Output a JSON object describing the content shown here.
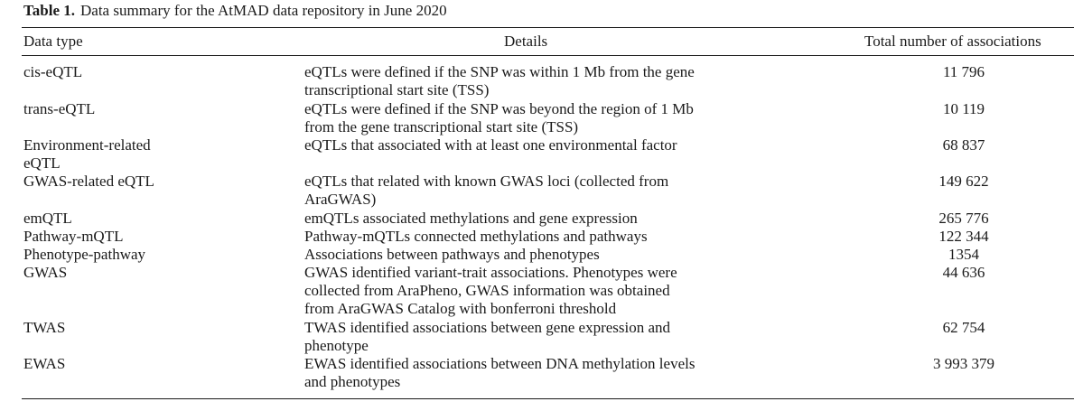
{
  "caption": {
    "label": "Table 1.",
    "text": "Data summary for the AtMAD data repository in June 2020"
  },
  "headers": {
    "data_type": "Data type",
    "details": "Details",
    "total": "Total number of associations"
  },
  "rows": [
    {
      "type": "cis-eQTL",
      "details": "eQTLs were defined if the SNP was within 1 Mb from the gene\ntranscriptional start site (TSS)",
      "total": "11 796"
    },
    {
      "type": "trans-eQTL",
      "details": "eQTLs were defined if the SNP was beyond the region of 1 Mb\nfrom the gene transcriptional start site (TSS)",
      "total": "10 119"
    },
    {
      "type": "Environment-related\neQTL",
      "details": "eQTLs that associated with at least one environmental factor",
      "total": "68 837"
    },
    {
      "type": "GWAS-related eQTL",
      "details": "eQTLs that related with known GWAS loci (collected from\nAraGWAS)",
      "total": "149 622"
    },
    {
      "type": "emQTL",
      "details": "emQTLs associated methylations and gene expression",
      "total": "265 776"
    },
    {
      "type": "Pathway-mQTL",
      "details": "Pathway-mQTLs connected methylations and pathways",
      "total": "122 344"
    },
    {
      "type": "Phenotype-pathway",
      "details": "Associations between pathways and phenotypes",
      "total": "1354"
    },
    {
      "type": "GWAS",
      "details": "GWAS identified variant-trait associations. Phenotypes were\ncollected from AraPheno, GWAS information was obtained\nfrom AraGWAS Catalog with bonferroni threshold",
      "total": "44 636"
    },
    {
      "type": "TWAS",
      "details": "TWAS identified associations between gene expression and\nphenotype",
      "total": "62 754"
    },
    {
      "type": "EWAS",
      "details": "EWAS identified associations between DNA methylation levels\nand phenotypes",
      "total": "3 993 379"
    }
  ]
}
